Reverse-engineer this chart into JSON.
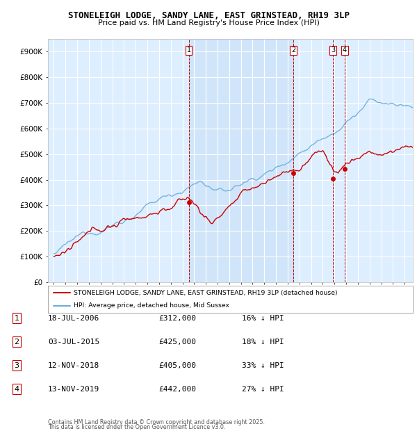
{
  "title": "STONELEIGH LODGE, SANDY LANE, EAST GRINSTEAD, RH19 3LP",
  "subtitle": "Price paid vs. HM Land Registry's House Price Index (HPI)",
  "ylabel_ticks": [
    "£0",
    "£100K",
    "£200K",
    "£300K",
    "£400K",
    "£500K",
    "£600K",
    "£700K",
    "£800K",
    "£900K"
  ],
  "ytick_values": [
    0,
    100000,
    200000,
    300000,
    400000,
    500000,
    600000,
    700000,
    800000,
    900000
  ],
  "ylim": [
    0,
    950000
  ],
  "xlim_start": 1994.5,
  "xlim_end": 2025.7,
  "hpi_color": "#6baed6",
  "price_color": "#cc0000",
  "sale_marker_color": "#cc0000",
  "dashed_color": "#cc0000",
  "shade_color": "#ddeeff",
  "plot_bg": "#ddeeff",
  "grid_color": "#ffffff",
  "legend_entry1": "STONELEIGH LODGE, SANDY LANE, EAST GRINSTEAD, RH19 3LP (detached house)",
  "legend_entry2": "HPI: Average price, detached house, Mid Sussex",
  "sales": [
    {
      "label": "1",
      "date": 2006.54,
      "price": 312000
    },
    {
      "label": "2",
      "date": 2015.5,
      "price": 425000
    },
    {
      "label": "3",
      "date": 2018.87,
      "price": 405000
    },
    {
      "label": "4",
      "date": 2019.87,
      "price": 442000
    }
  ],
  "table_rows": [
    {
      "num": "1",
      "date": "18-JUL-2006",
      "price": "£312,000",
      "pct": "16% ↓ HPI"
    },
    {
      "num": "2",
      "date": "03-JUL-2015",
      "price": "£425,000",
      "pct": "18% ↓ HPI"
    },
    {
      "num": "3",
      "date": "12-NOV-2018",
      "price": "£405,000",
      "pct": "33% ↓ HPI"
    },
    {
      "num": "4",
      "date": "13-NOV-2019",
      "price": "£442,000",
      "pct": "27% ↓ HPI"
    }
  ],
  "footer_line1": "Contains HM Land Registry data © Crown copyright and database right 2025.",
  "footer_line2": "This data is licensed under the Open Government Licence v3.0."
}
